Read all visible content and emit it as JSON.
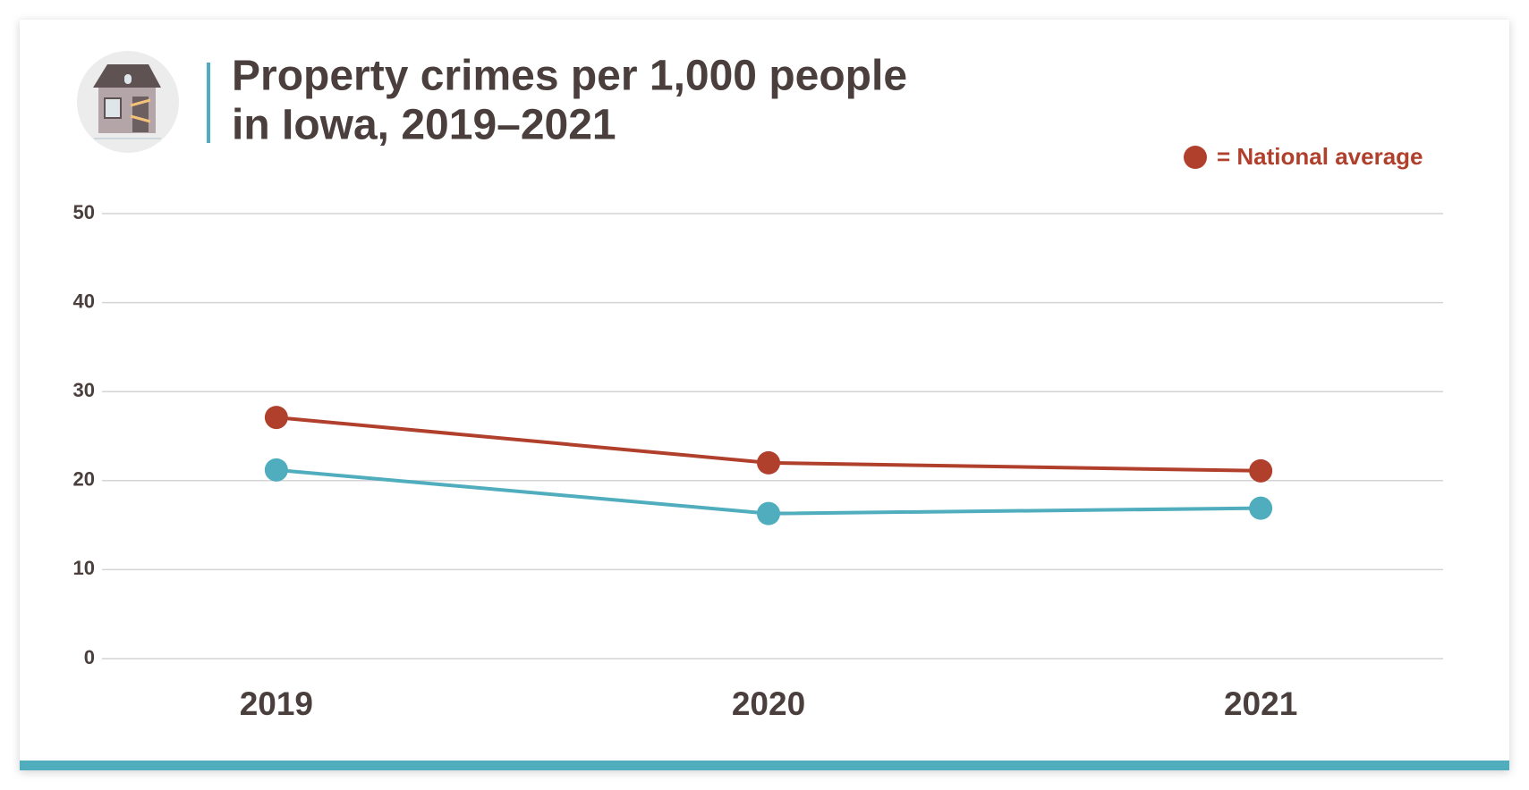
{
  "chart_data": {
    "type": "line",
    "title": [
      "Property crimes per 1,000 people",
      "in Iowa, 2019–2021"
    ],
    "categories": [
      "2019",
      "2020",
      "2021"
    ],
    "series": [
      {
        "name": "= National average",
        "color": "#b0402c",
        "values": [
          27.1,
          22.0,
          21.1
        ]
      },
      {
        "color": "#4fadbd",
        "values": [
          21.2,
          16.3,
          16.9
        ]
      }
    ],
    "ylim": [
      0,
      50
    ],
    "yticks": [
      0,
      10,
      20,
      30,
      40,
      50
    ],
    "grid": true
  }
}
